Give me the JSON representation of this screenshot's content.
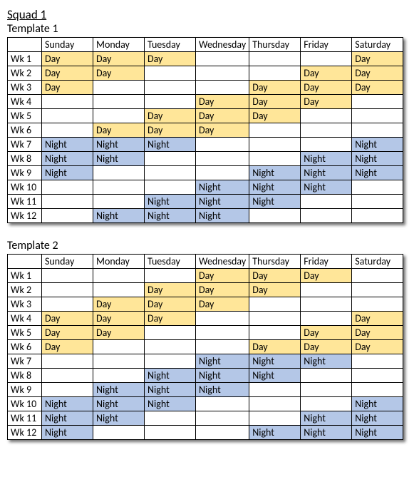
{
  "squad_title": "Squad 1",
  "columns": [
    "Sunday",
    "Monday",
    "Tuesday",
    "Wednesday",
    "Thursday",
    "Friday",
    "Saturday"
  ],
  "week_labels": [
    "Wk 1",
    "Wk 2",
    "Wk 3",
    "Wk 4",
    "Wk 5",
    "Wk 6",
    "Wk 7",
    "Wk 8",
    "Wk 9",
    "Wk 10",
    "Wk 11",
    "Wk 12"
  ],
  "shift_labels": {
    "Day": "Day",
    "Night": "Night"
  },
  "colors": {
    "Day": "#ffe699",
    "Night": "#b4c7e7",
    "border": "#000000",
    "background": "#ffffff",
    "text": "#000000"
  },
  "column_widths": {
    "wk": 48,
    "day": 72
  },
  "font_size": 14,
  "templates": [
    {
      "title": "Template 1",
      "rows": [
        [
          "Day",
          "Day",
          "Day",
          null,
          null,
          null,
          "Day"
        ],
        [
          "Day",
          "Day",
          null,
          null,
          null,
          "Day",
          "Day"
        ],
        [
          "Day",
          null,
          null,
          null,
          "Day",
          "Day",
          "Day"
        ],
        [
          null,
          null,
          null,
          "Day",
          "Day",
          "Day",
          null
        ],
        [
          null,
          null,
          "Day",
          "Day",
          "Day",
          null,
          null
        ],
        [
          null,
          "Day",
          "Day",
          "Day",
          null,
          null,
          null
        ],
        [
          "Night",
          "Night",
          "Night",
          null,
          null,
          null,
          "Night"
        ],
        [
          "Night",
          "Night",
          null,
          null,
          null,
          "Night",
          "Night"
        ],
        [
          "Night",
          null,
          null,
          null,
          "Night",
          "Night",
          "Night"
        ],
        [
          null,
          null,
          null,
          "Night",
          "Night",
          "Night",
          null
        ],
        [
          null,
          null,
          "Night",
          "Night",
          "Night",
          null,
          null
        ],
        [
          null,
          "Night",
          "Night",
          "Night",
          null,
          null,
          null
        ]
      ]
    },
    {
      "title": "Template 2",
      "rows": [
        [
          null,
          null,
          null,
          "Day",
          "Day",
          "Day",
          null
        ],
        [
          null,
          null,
          "Day",
          "Day",
          "Day",
          null,
          null
        ],
        [
          null,
          "Day",
          "Day",
          "Day",
          null,
          null,
          null
        ],
        [
          "Day",
          "Day",
          "Day",
          null,
          null,
          null,
          "Day"
        ],
        [
          "Day",
          "Day",
          null,
          null,
          null,
          "Day",
          "Day"
        ],
        [
          "Day",
          null,
          null,
          null,
          "Day",
          "Day",
          "Day"
        ],
        [
          null,
          null,
          null,
          "Night",
          "Night",
          "Night",
          null
        ],
        [
          null,
          null,
          "Night",
          "Night",
          "Night",
          null,
          null
        ],
        [
          null,
          "Night",
          "Night",
          "Night",
          null,
          null,
          null
        ],
        [
          "Night",
          "Night",
          "Night",
          null,
          null,
          null,
          "Night"
        ],
        [
          "Night",
          "Night",
          null,
          null,
          null,
          "Night",
          "Night"
        ],
        [
          "Night",
          null,
          null,
          null,
          "Night",
          "Night",
          "Night"
        ]
      ]
    }
  ]
}
